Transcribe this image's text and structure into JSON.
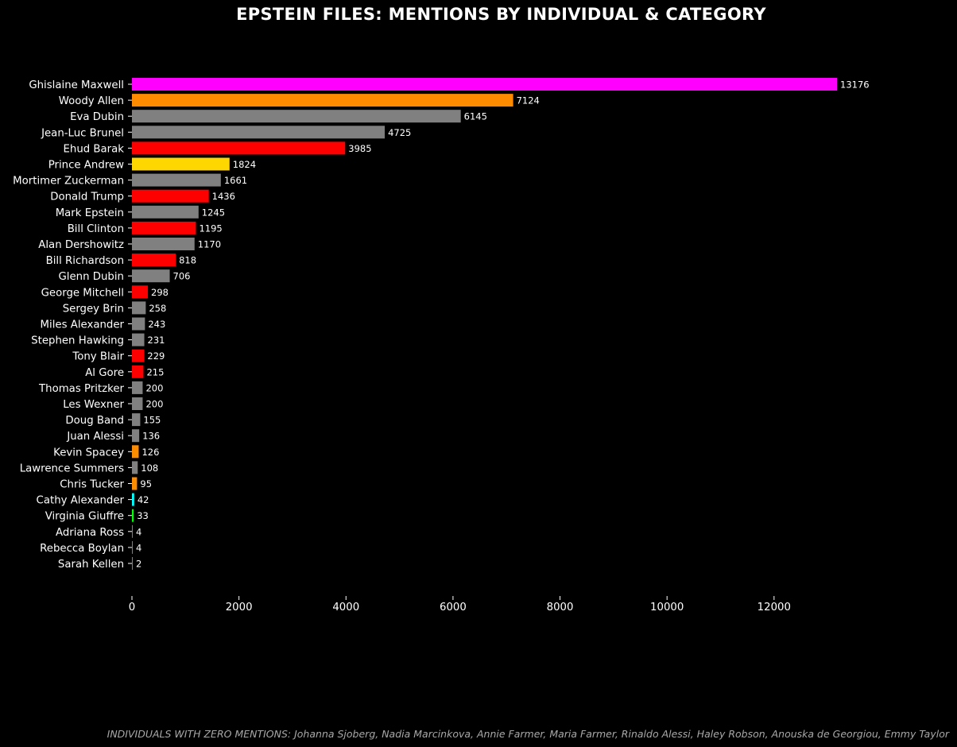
{
  "chart_data": {
    "type": "bar",
    "orientation": "horizontal",
    "title": "EPSTEIN FILES: MENTIONS BY INDIVIDUAL & CATEGORY",
    "xlabel": "",
    "ylabel": "",
    "xlim": [
      0,
      13800
    ],
    "xticks": [
      0,
      2000,
      4000,
      6000,
      8000,
      10000,
      12000
    ],
    "grid": false,
    "background": "#000000",
    "categories": [
      "Ghislaine Maxwell",
      "Woody Allen",
      "Eva Dubin",
      "Jean-Luc Brunel",
      "Ehud Barak",
      "Prince Andrew",
      "Mortimer Zuckerman",
      "Donald Trump",
      "Mark Epstein",
      "Bill Clinton",
      "Alan Dershowitz",
      "Bill Richardson",
      "Glenn Dubin",
      "George Mitchell",
      "Sergey Brin",
      "Miles Alexander",
      "Stephen Hawking",
      "Tony Blair",
      "Al Gore",
      "Thomas Pritzker",
      "Les Wexner",
      "Doug Band",
      "Juan Alessi",
      "Kevin Spacey",
      "Lawrence Summers",
      "Chris Tucker",
      "Cathy Alexander",
      "Virginia Giuffre",
      "Adriana Ross",
      "Rebecca Boylan",
      "Sarah Kellen"
    ],
    "values": [
      13176,
      7124,
      6145,
      4725,
      3985,
      1824,
      1661,
      1436,
      1245,
      1195,
      1170,
      818,
      706,
      298,
      258,
      243,
      231,
      229,
      215,
      200,
      200,
      155,
      136,
      126,
      108,
      95,
      42,
      33,
      4,
      4,
      2
    ],
    "colors": [
      "#ff00ff",
      "#ff8c00",
      "#808080",
      "#808080",
      "#ff0000",
      "#ffd700",
      "#808080",
      "#ff0000",
      "#808080",
      "#ff0000",
      "#808080",
      "#ff0000",
      "#808080",
      "#ff0000",
      "#808080",
      "#808080",
      "#808080",
      "#ff0000",
      "#ff0000",
      "#808080",
      "#808080",
      "#808080",
      "#808080",
      "#ff8c00",
      "#808080",
      "#ff8c00",
      "#00ffff",
      "#00ff00",
      "#808080",
      "#808080",
      "#808080"
    ],
    "footnote": "INDIVIDUALS WITH ZERO MENTIONS: Johanna Sjoberg, Nadia Marcinkova, Annie Farmer, Maria Farmer, Rinaldo Alessi, Haley Robson, Anouska de Georgiou, Emmy Taylor"
  }
}
